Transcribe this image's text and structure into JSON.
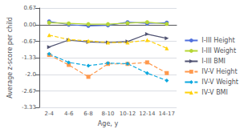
{
  "chart_data": {
    "type": "line",
    "xlabel": "Age, y",
    "ylabel": "Average z-score per child",
    "categories": [
      "2-4",
      "4-6",
      "6-8",
      "8-10",
      "10-12",
      "12-14",
      "14-17"
    ],
    "series": [
      {
        "name": "I-III Height",
        "values": [
          0.13,
          0.0,
          -0.05,
          -0.03,
          0.1,
          0.05,
          0.08
        ],
        "line_style": "solid",
        "marker": "circle"
      },
      {
        "name": "I-III Weight",
        "values": [
          0.08,
          0.05,
          0.02,
          0.02,
          0.06,
          0.1,
          0.03
        ],
        "line_style": "solid",
        "marker": "circle"
      },
      {
        "name": "I-III BMI",
        "values": [
          -0.9,
          -0.62,
          -0.7,
          -0.72,
          -0.68,
          -0.38,
          -0.55
        ],
        "line_style": "solid",
        "marker": "triangle-right"
      },
      {
        "name": "IV-V Height",
        "values": [
          -1.22,
          -1.62,
          -2.1,
          -1.58,
          -1.58,
          -1.52,
          -1.95
        ],
        "line_style": "dashed",
        "marker": "square"
      },
      {
        "name": "IV-V Weight",
        "values": [
          -1.18,
          -1.52,
          -1.65,
          -1.55,
          -1.57,
          -1.95,
          -2.25
        ],
        "line_style": "dashed",
        "marker": "diamond"
      },
      {
        "name": "IV-V BMI",
        "values": [
          -0.42,
          -0.6,
          -0.65,
          -0.72,
          -0.72,
          -0.62,
          -0.95
        ],
        "line_style": "dashed",
        "marker": "triangle-up"
      }
    ],
    "ylim": [
      -3.33,
      0.67
    ],
    "yticks": [
      0.67,
      {
        "value": 0.0,
        "label": "0.00"
      },
      -0.67,
      -1.33,
      {
        "value": -2.0,
        "label": "-2.0"
      },
      -2.67,
      -3.33
    ],
    "grid": true,
    "legend": "right"
  }
}
